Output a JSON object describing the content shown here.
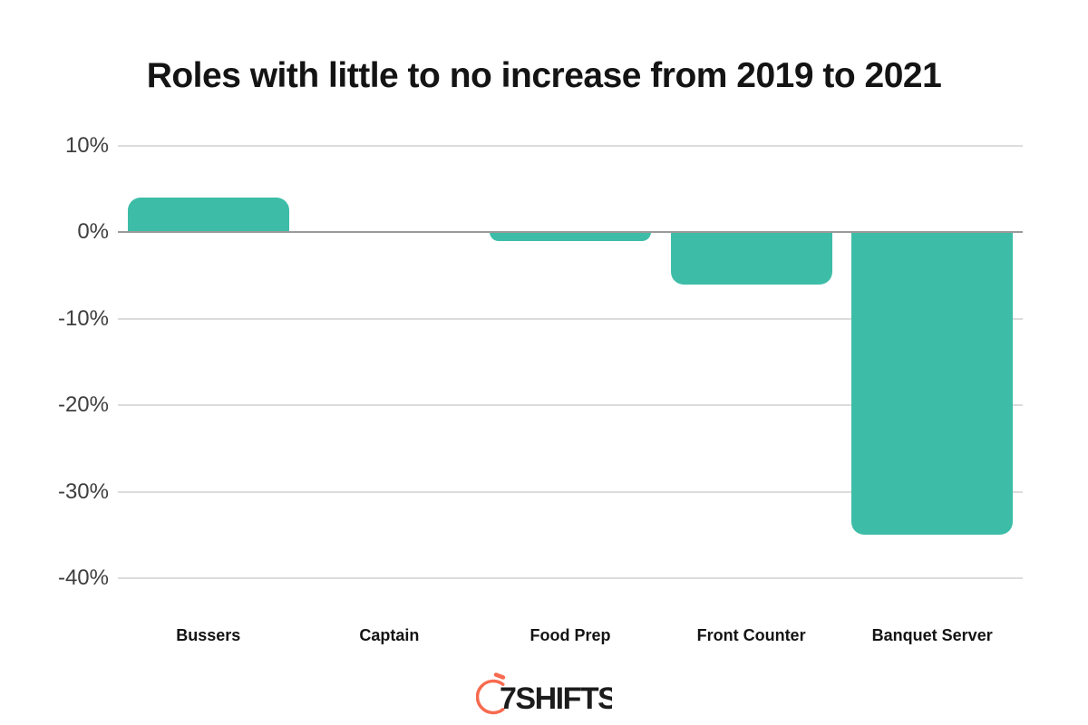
{
  "page": {
    "background_color": "#ffffff"
  },
  "chart_data": {
    "type": "bar",
    "title": "Roles with little to no increase from 2019 to 2021",
    "categories": [
      "Bussers",
      "Captain",
      "Food Prep",
      "Front Counter",
      "Banquet Server"
    ],
    "values": [
      4,
      0,
      -1,
      -6,
      -35
    ],
    "unit": "%",
    "xlabel": "",
    "ylabel": "",
    "ylim": [
      -40,
      10
    ],
    "yticks": [
      10,
      0,
      -10,
      -20,
      -30,
      -40
    ],
    "ytick_labels": [
      "10%",
      "0%",
      "-10%",
      "-20%",
      "-30%",
      "-40%"
    ],
    "grid": true,
    "legend": false,
    "bar_color": "#3dbda7",
    "gridline_color": "#dcdcdc",
    "zero_line_color": "#9a9a9a",
    "ytick_color": "#3e3e3e",
    "category_label_color": "#141414"
  },
  "footer": {
    "brand": "7SHIFTS",
    "logo_icon": "stopwatch-icon",
    "logo_color": "#f76a4f",
    "wordmark_color": "#1c1c1c"
  }
}
